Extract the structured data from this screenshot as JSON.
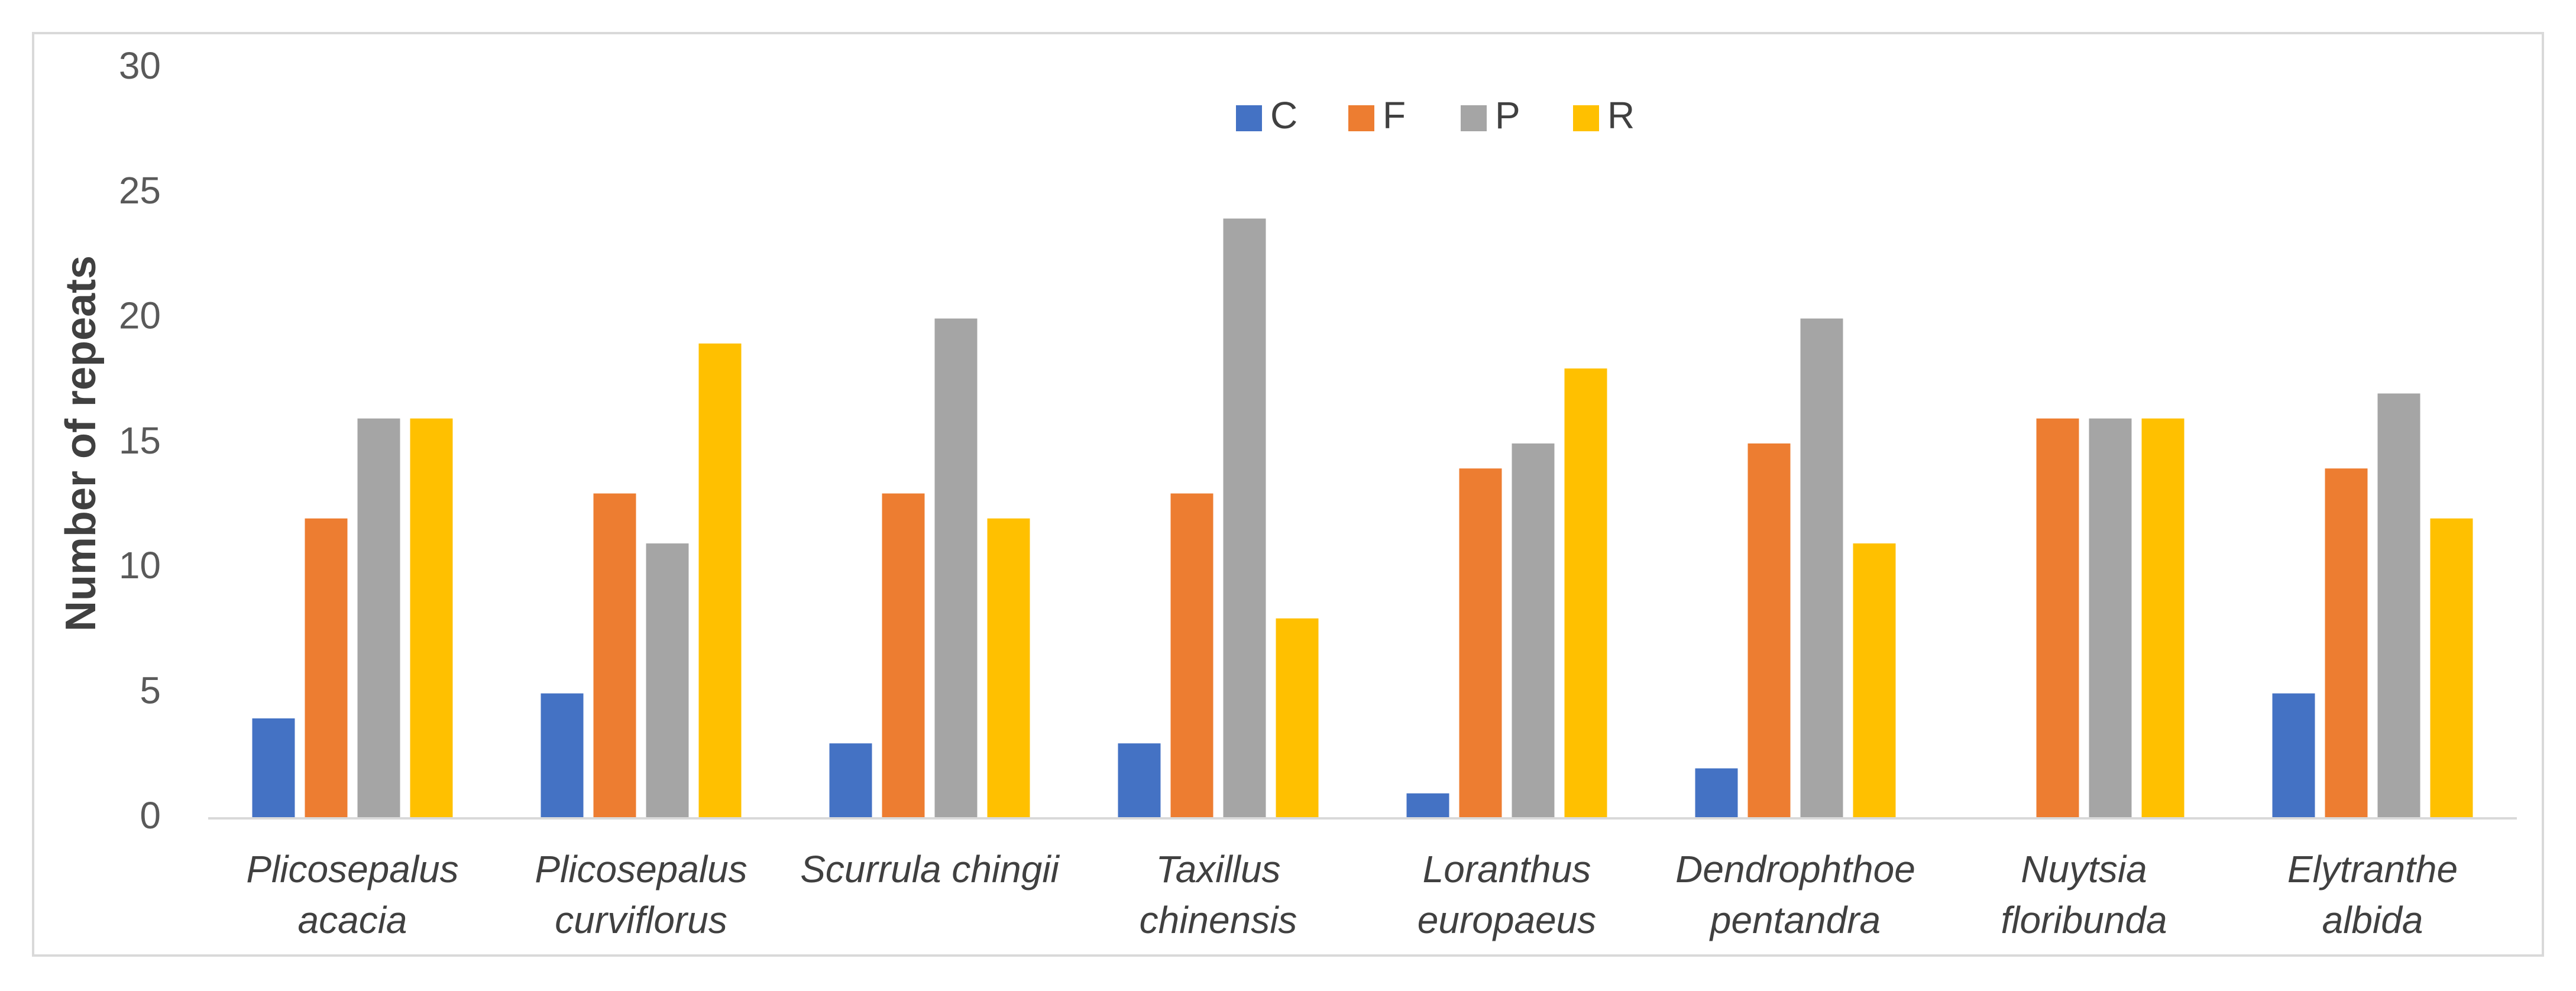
{
  "chart_data": {
    "type": "bar",
    "title": "",
    "xlabel": "",
    "ylabel": "Number of repeats",
    "ylim": [
      0,
      30
    ],
    "yticks": [
      0,
      5,
      10,
      15,
      20,
      25,
      30
    ],
    "grid": false,
    "legend_position": "top-center",
    "categories": [
      [
        "Plicosepalus",
        "acacia"
      ],
      [
        "Plicosepalus",
        "curviflorus"
      ],
      [
        "Scurrula chingii"
      ],
      [
        "Taxillus",
        "chinensis"
      ],
      [
        "Loranthus",
        "europaeus"
      ],
      [
        "Dendrophthoe",
        "pentandra"
      ],
      [
        "Nuytsia",
        "floribunda"
      ],
      [
        "Elytranthe",
        "albida"
      ]
    ],
    "series": [
      {
        "name": "C",
        "color": "#4472C4",
        "values": [
          4,
          5,
          3,
          3,
          1,
          2,
          0,
          5
        ]
      },
      {
        "name": "F",
        "color": "#ED7D31",
        "values": [
          12,
          13,
          13,
          13,
          14,
          15,
          16,
          14
        ]
      },
      {
        "name": "P",
        "color": "#A5A5A5",
        "values": [
          16,
          11,
          20,
          24,
          15,
          20,
          16,
          17
        ]
      },
      {
        "name": "R",
        "color": "#FFC000",
        "values": [
          16,
          19,
          12,
          8,
          18,
          11,
          16,
          12
        ]
      }
    ]
  }
}
